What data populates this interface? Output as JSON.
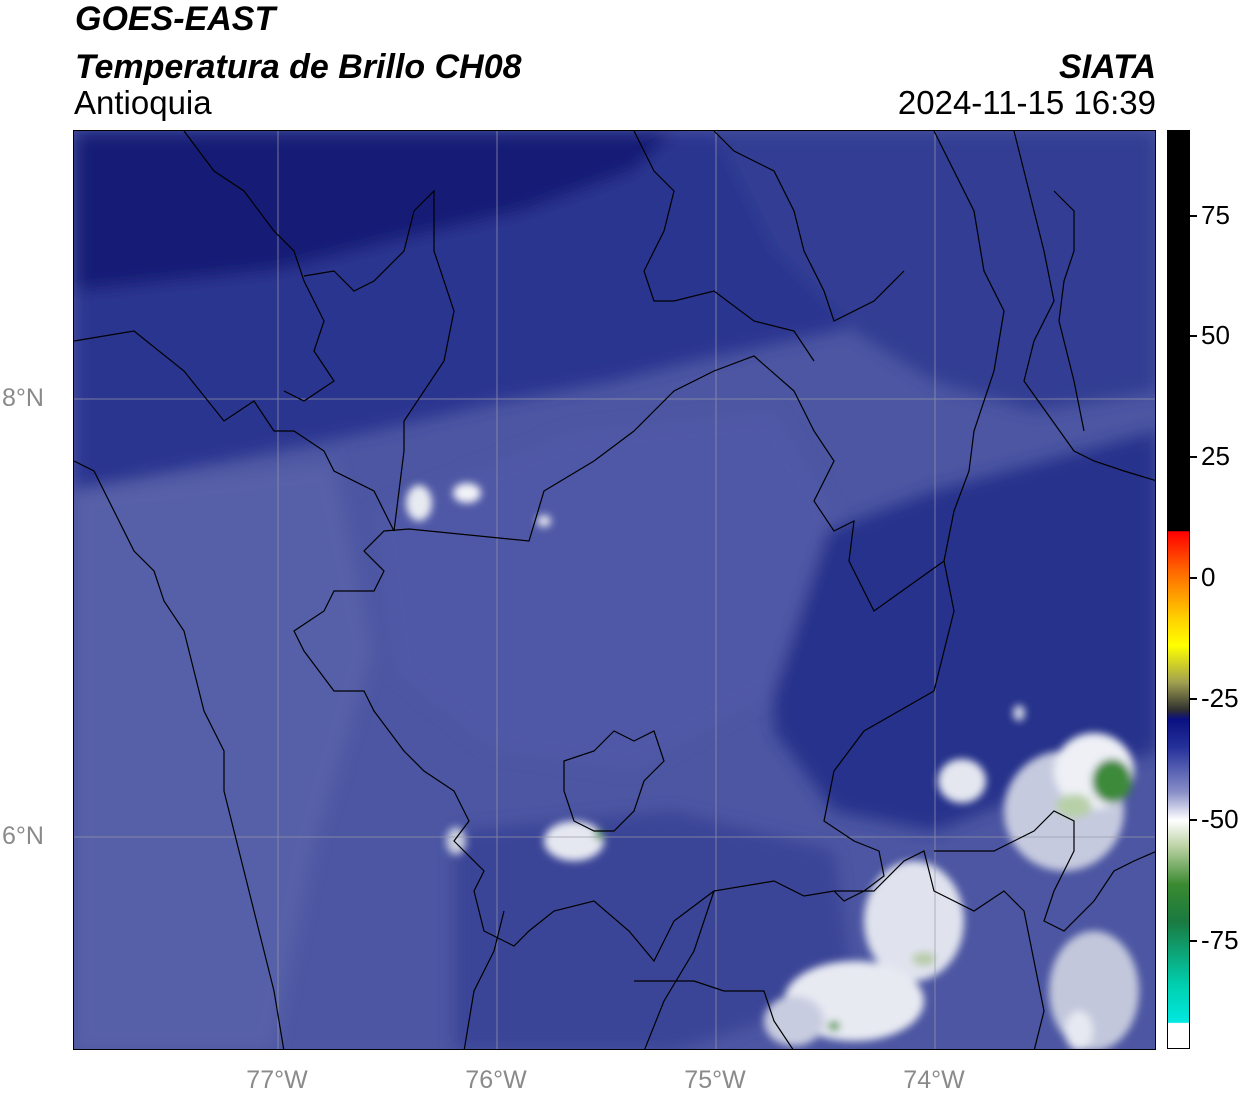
{
  "header": {
    "satellite": "GOES-EAST",
    "product": "Temperatura de Brillo CH08",
    "region": "Antioquia",
    "agency": "SIATA",
    "datetime": "2024-11-15 16:39"
  },
  "map": {
    "lat_labels": [
      "8°N",
      "6°N"
    ],
    "lon_labels": [
      "77°W",
      "76°W",
      "75°W",
      "74°W"
    ],
    "colors": {
      "very_cold_dark": "#101a70",
      "cold_navy": "#25308a",
      "mid_blue": "#3a4595",
      "light_blue": "#4e58a4",
      "pale": "#d8dce8",
      "green": "#3a8a3a"
    }
  },
  "colorbar": {
    "labels": [
      "75",
      "50",
      "25",
      "0",
      "-25",
      "-50",
      "-75"
    ]
  }
}
